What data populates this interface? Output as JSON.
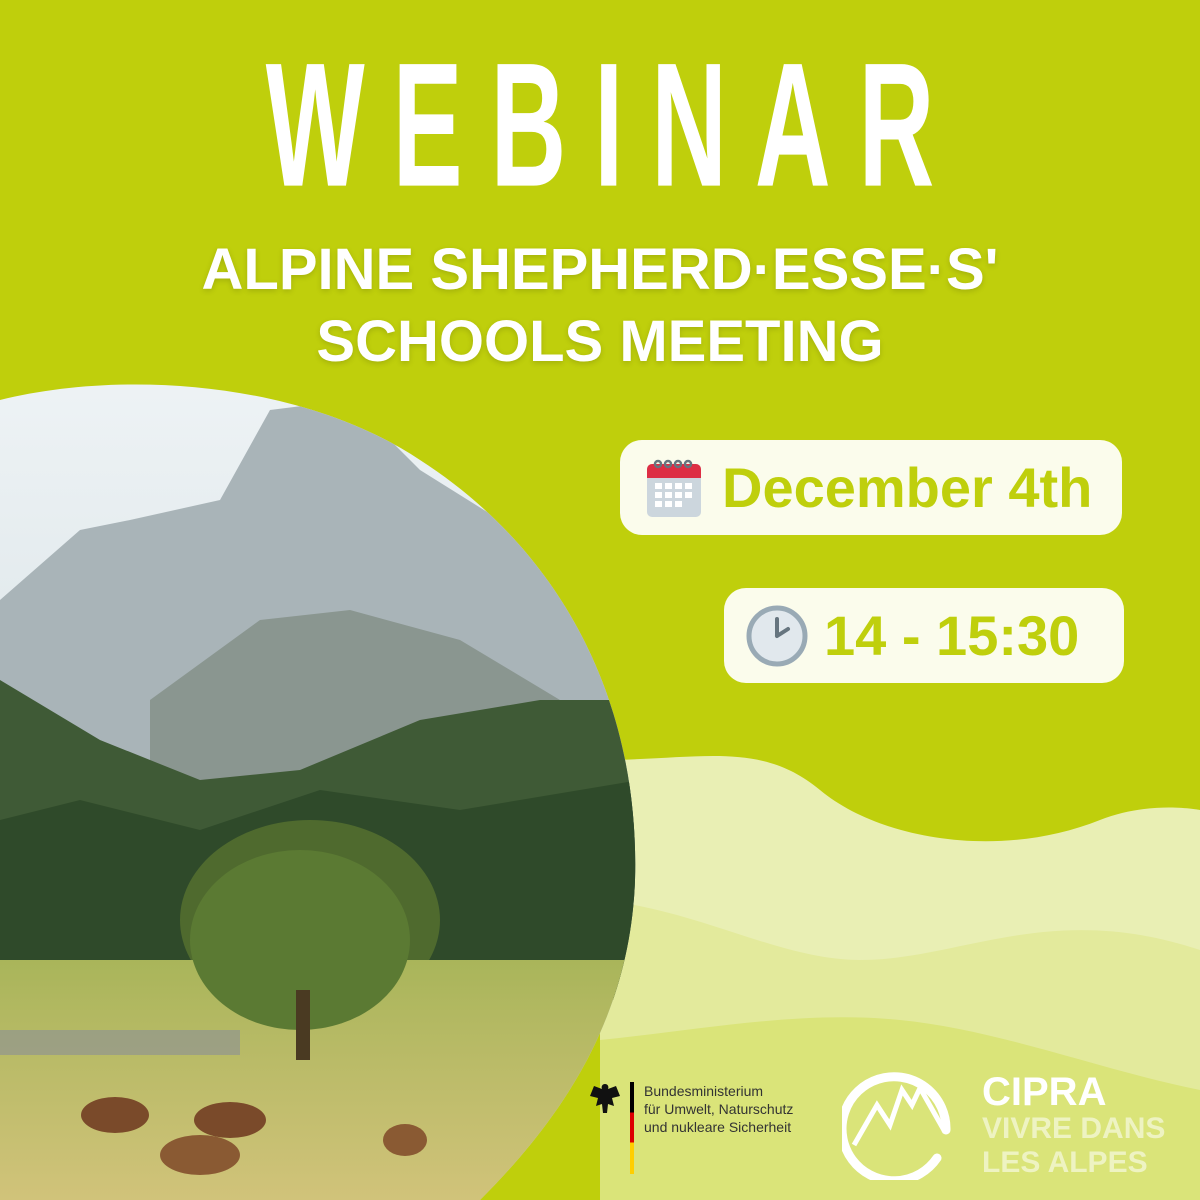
{
  "title": "WEBINAR",
  "subtitle": {
    "line1": "ALPINE SHEPHERD·ESSE·S'",
    "line2": "SCHOOLS MEETING"
  },
  "date": {
    "icon": "calendar-icon",
    "text": "December 4th"
  },
  "time": {
    "icon": "clock-icon",
    "text": "14 - 15:30"
  },
  "ministry": {
    "lines": [
      "Bundesministerium",
      "für Umwelt, Naturschutz",
      "und nukleare Sicherheit"
    ]
  },
  "cipra": {
    "name": "CIPRA",
    "tagline1": "VIVRE DANS",
    "tagline2": "LES ALPES"
  },
  "colors": {
    "background": "#bfcf0c",
    "pill": "#fbfcec",
    "accent": "#bfcf0c"
  }
}
